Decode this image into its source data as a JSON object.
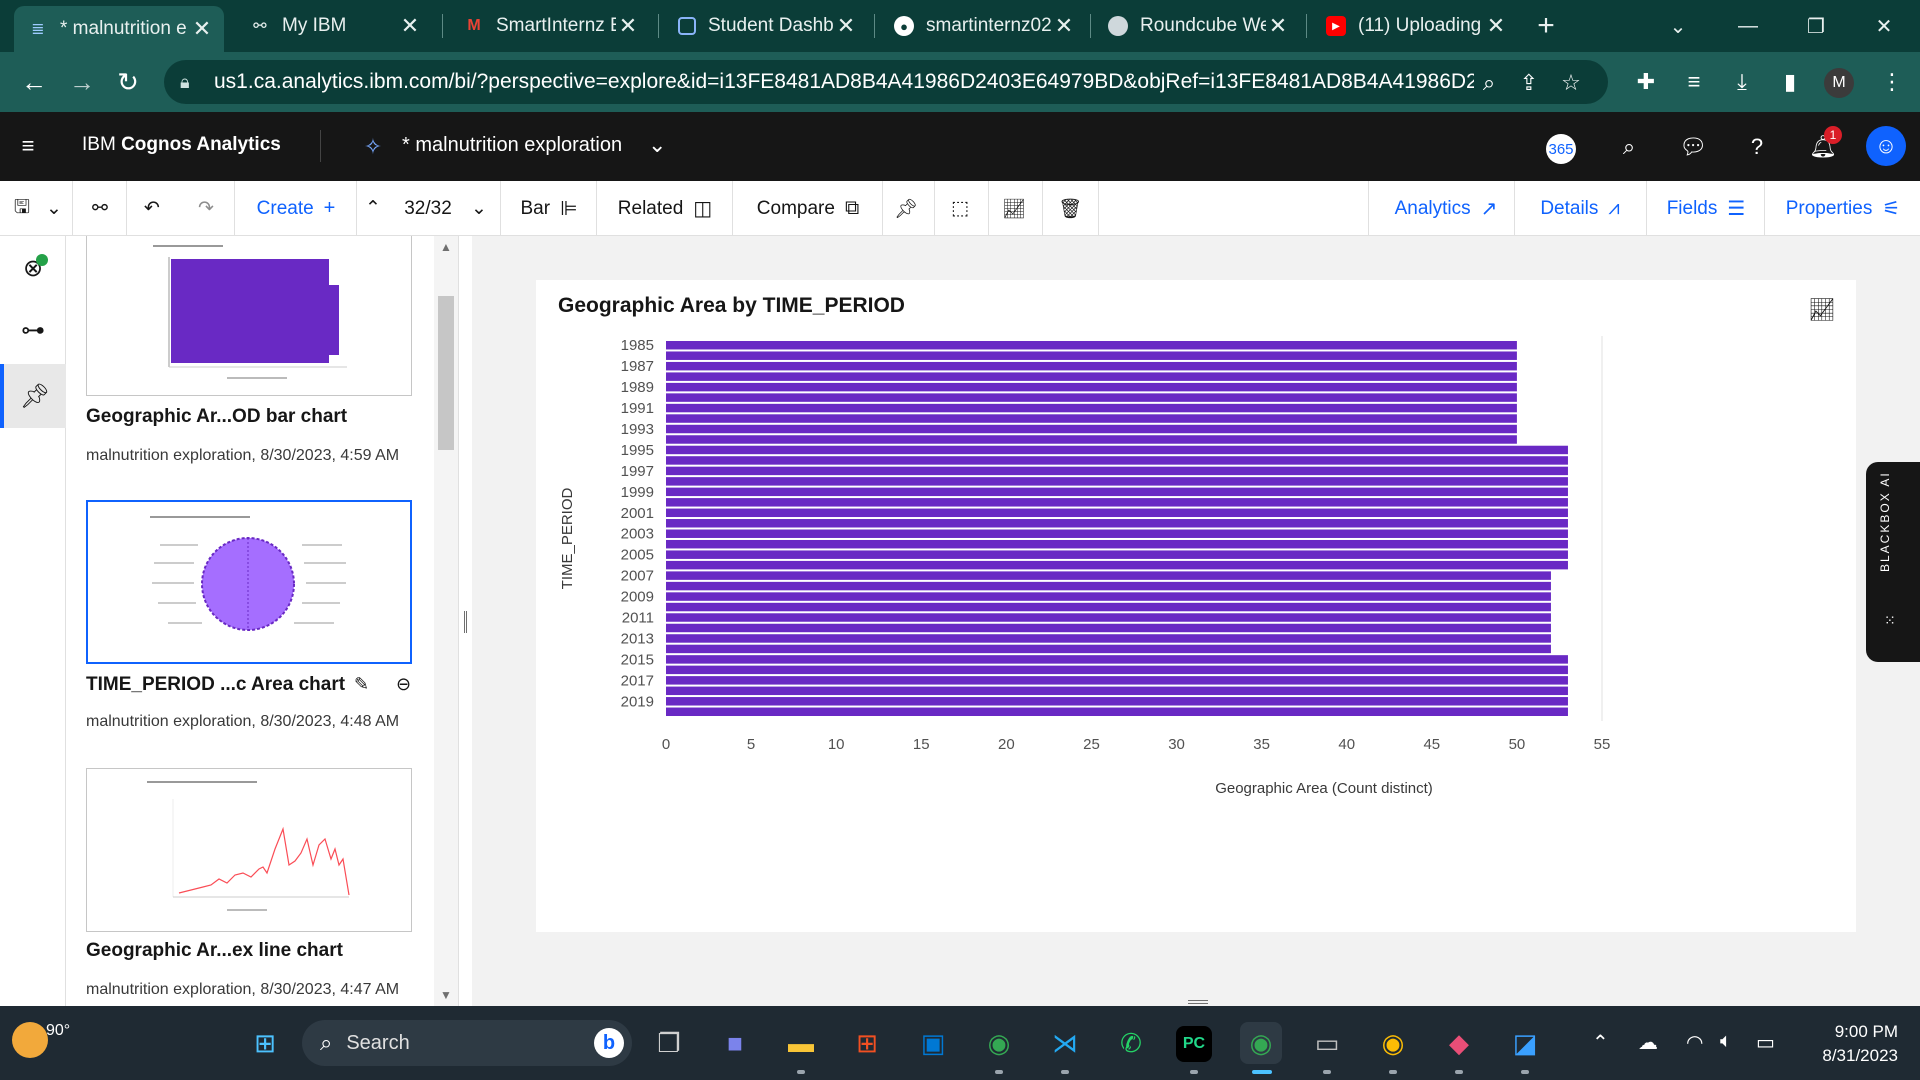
{
  "browser": {
    "tabs": [
      {
        "title": "* malnutrition e",
        "icon": "cognos-icon",
        "active": true
      },
      {
        "title": "My IBM",
        "icon": "ibm-icon",
        "active": false
      },
      {
        "title": "SmartInternz E",
        "icon": "gmail-icon",
        "active": false
      },
      {
        "title": "Student Dashb",
        "icon": "dashboard-icon",
        "active": false
      },
      {
        "title": "smartinternz02",
        "icon": "github-icon",
        "active": false
      },
      {
        "title": "Roundcube We",
        "icon": "roundcube-icon",
        "active": false
      },
      {
        "title": "(11) Uploading",
        "icon": "youtube-icon",
        "active": false
      }
    ],
    "url": "us1.ca.analytics.ibm.com/bi/?perspective=explore&id=i13FE8481AD8B4A41986D2403E64979BD&objRef=i13FE8481AD8B4A41986D2...",
    "profile_initial": "M"
  },
  "app": {
    "brand_prefix": "IBM ",
    "brand_name": "Cognos Analytics",
    "exploration_title": "* malnutrition exploration",
    "badge_365": "365",
    "notification_count": "1"
  },
  "toolbar": {
    "create_label": "Create",
    "page_counter": "32/32",
    "bar_label": "Bar",
    "related_label": "Related",
    "compare_label": "Compare",
    "analytics_label": "Analytics",
    "details_label": "Details",
    "fields_label": "Fields",
    "properties_label": "Properties"
  },
  "pins": [
    {
      "title": "Geographic Ar...OD bar chart",
      "meta": "malnutrition exploration, 8/30/2023, 4:59 AM"
    },
    {
      "title": "TIME_PERIOD ...c Area chart",
      "meta": "malnutrition exploration, 8/30/2023, 4:48 AM"
    },
    {
      "title": "Geographic Ar...ex line chart",
      "meta": "malnutrition exploration, 8/30/2023, 4:47 AM"
    }
  ],
  "chart_data": {
    "type": "bar",
    "orientation": "horizontal",
    "title": "Geographic Area by TIME_PERIOD",
    "xlabel": "Geographic Area (Count distinct)",
    "ylabel": "TIME_PERIOD",
    "xlim": [
      0,
      55
    ],
    "xticks": [
      0,
      5,
      10,
      15,
      20,
      25,
      30,
      35,
      40,
      45,
      50,
      55
    ],
    "ytick_labels": [
      "1985",
      "1987",
      "1989",
      "1991",
      "1993",
      "1995",
      "1997",
      "1999",
      "2001",
      "2003",
      "2005",
      "2007",
      "2009",
      "2011",
      "2013",
      "2015",
      "2017",
      "2019"
    ],
    "categories": [
      "1985",
      "1986",
      "1987",
      "1988",
      "1989",
      "1990",
      "1991",
      "1992",
      "1993",
      "1994",
      "1995",
      "1996",
      "1997",
      "1998",
      "1999",
      "2000",
      "2001",
      "2002",
      "2003",
      "2004",
      "2005",
      "2006",
      "2007",
      "2008",
      "2009",
      "2010",
      "2011",
      "2012",
      "2013",
      "2014",
      "2015",
      "2016",
      "2017",
      "2018",
      "2019",
      "2020"
    ],
    "values": [
      50,
      50,
      50,
      50,
      50,
      50,
      50,
      50,
      50,
      50,
      53,
      53,
      53,
      53,
      53,
      53,
      53,
      53,
      53,
      53,
      53,
      53,
      52,
      52,
      52,
      52,
      52,
      52,
      52,
      52,
      53,
      53,
      53,
      53,
      53,
      53
    ],
    "color": "#6929c4",
    "grid": false
  },
  "blackbox_label": "BLACKBOX AI",
  "taskbar": {
    "temperature": "90°",
    "search_placeholder": "Search",
    "time": "9:00 PM",
    "date": "8/31/2023"
  }
}
